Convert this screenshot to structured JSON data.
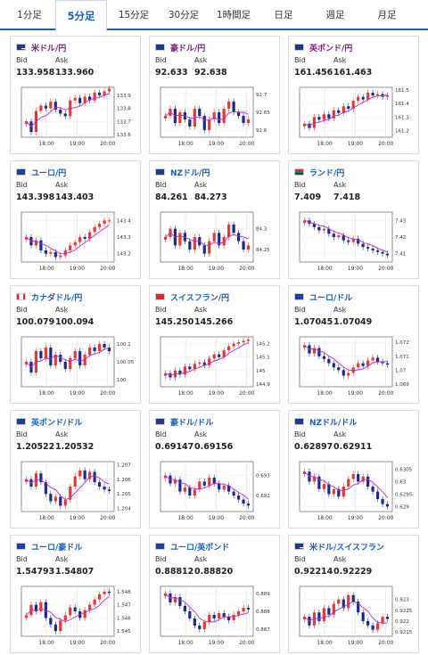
{
  "tabs": [
    {
      "label": "1分足"
    },
    {
      "label": "5分足"
    },
    {
      "label": "15分足"
    },
    {
      "label": "30分足"
    },
    {
      "label": "1時間足"
    },
    {
      "label": "日足"
    },
    {
      "label": "週足"
    },
    {
      "label": "月足"
    }
  ],
  "active_tab": 1,
  "bid_label": "Bid",
  "ask_label": "Ask",
  "colors": {
    "up": "#e53935",
    "down": "#1b2b8a",
    "ma": "#c026c8",
    "accent": "#1a5fb4",
    "pair_text": "#7a1f7a"
  },
  "cards": [
    {
      "name": "米ドル/円",
      "flag": "us-flag",
      "bid": "133.958",
      "ask": "133.960",
      "chart_data": {
        "type": "line",
        "x_ticks": [
          "18:00",
          "19:00",
          "20:00"
        ],
        "y_ticks": [
          "133.9",
          "133.8",
          "133.7",
          "133.6"
        ],
        "ylim": [
          133.58,
          133.96
        ],
        "series": [
          {
            "values": [
              133.7,
              133.62,
              133.78,
              133.82,
              133.8,
              133.85,
              133.79,
              133.76,
              133.74,
              133.86,
              133.88,
              133.84,
              133.89,
              133.86,
              133.92,
              133.9,
              133.93,
              133.95
            ]
          }
        ]
      }
    },
    {
      "name": "豪ドル/円",
      "flag": "au-flag",
      "bid": "92.633",
      "ask": "92.638",
      "chart_data": {
        "type": "line",
        "x_ticks": [
          "18:00",
          "19:00",
          "20:00"
        ],
        "y_ticks": [
          "92.7",
          "92.65",
          "92.6"
        ],
        "ylim": [
          92.58,
          92.72
        ],
        "series": [
          {
            "values": [
              92.64,
              92.66,
              92.62,
              92.65,
              92.63,
              92.61,
              92.66,
              92.64,
              92.6,
              92.63,
              92.65,
              92.62,
              92.66,
              92.68,
              92.65,
              92.64,
              92.62,
              92.63
            ]
          }
        ]
      }
    },
    {
      "name": "英ポンド/円",
      "flag": "gb-flag",
      "bid": "161.456",
      "ask": "161.463",
      "chart_data": {
        "type": "line",
        "x_ticks": [
          "18:00",
          "19:00",
          "20:00"
        ],
        "y_ticks": [
          "161.5",
          "161.4",
          "161.3",
          "161.2"
        ],
        "ylim": [
          161.15,
          161.52
        ],
        "series": [
          {
            "values": [
              161.25,
              161.22,
              161.3,
              161.28,
              161.32,
              161.29,
              161.35,
              161.33,
              161.38,
              161.36,
              161.42,
              161.45,
              161.43,
              161.48,
              161.46,
              161.47,
              161.45,
              161.46
            ]
          }
        ]
      }
    },
    {
      "name": "ユーロ/円",
      "flag": "eu-flag",
      "bid": "143.398",
      "ask": "143.403",
      "chart_data": {
        "type": "line",
        "x_ticks": [
          "18:00",
          "19:00",
          "20:00"
        ],
        "y_ticks": [
          "143.4",
          "143.3",
          "143.2"
        ],
        "ylim": [
          143.15,
          143.45
        ],
        "series": [
          {
            "values": [
              143.3,
              143.25,
              143.28,
              143.22,
              143.2,
              143.21,
              143.18,
              143.19,
              143.22,
              143.25,
              143.27,
              143.3,
              143.29,
              143.33,
              143.36,
              143.38,
              143.4,
              143.4
            ]
          }
        ]
      }
    },
    {
      "name": "NZドル/円",
      "flag": "nz-flag",
      "bid": "84.261",
      "ask": "84.273",
      "chart_data": {
        "type": "line",
        "x_ticks": [
          "18:00",
          "19:00",
          "20:00"
        ],
        "y_ticks": [
          "84.3",
          "84.25"
        ],
        "ylim": [
          84.22,
          84.34
        ],
        "series": [
          {
            "values": [
              84.28,
              84.3,
              84.26,
              84.29,
              84.27,
              84.25,
              84.28,
              84.26,
              84.24,
              84.27,
              84.29,
              84.26,
              84.28,
              84.31,
              84.29,
              84.27,
              84.25,
              84.26
            ]
          }
        ]
      }
    },
    {
      "name": "ランド/円",
      "flag": "za-flag",
      "bid": "7.409",
      "ask": "7.418",
      "chart_data": {
        "type": "line",
        "x_ticks": [
          "18:00",
          "19:00",
          "20:00"
        ],
        "y_ticks": [
          "7.43",
          "7.42",
          "7.41"
        ],
        "ylim": [
          7.405,
          7.435
        ],
        "series": [
          {
            "values": [
              7.43,
              7.428,
              7.426,
              7.424,
              7.425,
              7.422,
              7.42,
              7.421,
              7.418,
              7.417,
              7.419,
              7.416,
              7.414,
              7.413,
              7.412,
              7.411,
              7.41,
              7.409
            ]
          }
        ]
      }
    },
    {
      "name": "カナダドル/円",
      "flag": "ca-flag",
      "bid": "100.079",
      "ask": "100.094",
      "chart_data": {
        "type": "line",
        "x_ticks": [
          "18:00",
          "19:00",
          "20:00"
        ],
        "y_ticks": [
          "100.1",
          "100.05",
          "100"
        ],
        "ylim": [
          99.98,
          100.12
        ],
        "series": [
          {
            "values": [
              100.05,
              100.02,
              100.08,
              100.06,
              100.09,
              100.04,
              100.07,
              100.05,
              100.03,
              100.06,
              100.08,
              100.04,
              100.07,
              100.09,
              100.08,
              100.1,
              100.09,
              100.08
            ]
          }
        ]
      }
    },
    {
      "name": "スイスフラン/円",
      "flag": "ch-flag",
      "bid": "145.250",
      "ask": "145.266",
      "chart_data": {
        "type": "line",
        "x_ticks": [
          "18:00",
          "19:00",
          "20:00"
        ],
        "y_ticks": [
          "145.2",
          "145.1",
          "145",
          "144.9"
        ],
        "ylim": [
          144.88,
          145.25
        ],
        "series": [
          {
            "values": [
              144.98,
              144.95,
              145.0,
              144.97,
              145.03,
              145.01,
              145.05,
              145.06,
              145.04,
              145.09,
              145.12,
              145.1,
              145.15,
              145.18,
              145.2,
              145.21,
              145.22,
              145.23
            ]
          }
        ]
      }
    },
    {
      "name": "ユーロ/ドル",
      "flag": "eu-us-flag",
      "bid": "1.07045",
      "ask": "1.07049",
      "chart_data": {
        "type": "line",
        "x_ticks": [
          "18:00",
          "19:00",
          "20:00"
        ],
        "y_ticks": [
          "1.072",
          "1.071",
          "1.07",
          "1.069"
        ],
        "ylim": [
          1.0688,
          1.0724
        ],
        "series": [
          {
            "values": [
              1.0718,
              1.0712,
              1.0716,
              1.071,
              1.0708,
              1.0705,
              1.0702,
              1.07,
              1.0696,
              1.0698,
              1.0702,
              1.0705,
              1.0703,
              1.0707,
              1.0709,
              1.0706,
              1.0705,
              1.0704
            ]
          }
        ]
      }
    },
    {
      "name": "英ポンド/ドル",
      "flag": "gb-us-flag",
      "bid": "1.20522",
      "ask": "1.20532",
      "chart_data": {
        "type": "line",
        "x_ticks": [
          "18:00",
          "19:00",
          "20:00"
        ],
        "y_ticks": [
          "1.207",
          "1.206",
          "1.205",
          "1.204"
        ],
        "ylim": [
          1.2038,
          1.2072
        ],
        "series": [
          {
            "values": [
              1.206,
              1.2055,
              1.2064,
              1.2058,
              1.205,
              1.2045,
              1.2048,
              1.2042,
              1.2046,
              1.2055,
              1.2062,
              1.2066,
              1.206,
              1.2065,
              1.2058,
              1.2055,
              1.2053,
              1.2052
            ]
          }
        ]
      }
    },
    {
      "name": "豪ドル/ドル",
      "flag": "au-us-flag",
      "bid": "0.69147",
      "ask": "0.69156",
      "chart_data": {
        "type": "line",
        "x_ticks": [
          "18:00",
          "19:00",
          "20:00"
        ],
        "y_ticks": [
          "0.693",
          "0.692"
        ],
        "ylim": [
          0.6912,
          0.6937
        ],
        "series": [
          {
            "values": [
              0.693,
              0.6926,
              0.6928,
              0.6922,
              0.6924,
              0.692,
              0.6923,
              0.6927,
              0.6925,
              0.6929,
              0.6926,
              0.6923,
              0.6925,
              0.6922,
              0.692,
              0.6918,
              0.6916,
              0.6915
            ]
          }
        ]
      }
    },
    {
      "name": "NZドル/ドル",
      "flag": "nz-us-flag",
      "bid": "0.62897",
      "ask": "0.62911",
      "chart_data": {
        "type": "line",
        "x_ticks": [
          "18:00",
          "19:00",
          "20:00"
        ],
        "y_ticks": [
          "0.6305",
          "0.63",
          "0.6295",
          "0.629"
        ],
        "ylim": [
          0.6288,
          0.6308
        ],
        "series": [
          {
            "values": [
              0.6304,
              0.63,
              0.6302,
              0.6297,
              0.6299,
              0.6295,
              0.6297,
              0.6294,
              0.6298,
              0.6301,
              0.6303,
              0.63,
              0.6302,
              0.6298,
              0.6296,
              0.6293,
              0.6291,
              0.629
            ]
          }
        ]
      }
    },
    {
      "name": "ユーロ/豪ドル",
      "flag": "eu-au-flag",
      "bid": "1.54793",
      "ask": "1.54807",
      "chart_data": {
        "type": "line",
        "x_ticks": [
          "18:00",
          "19:00",
          "20:00"
        ],
        "y_ticks": [
          "1.548",
          "1.547",
          "1.546",
          "1.545"
        ],
        "ylim": [
          1.5446,
          1.5484
        ],
        "series": [
          {
            "values": [
              1.5462,
              1.547,
              1.5465,
              1.5472,
              1.546,
              1.5455,
              1.545,
              1.5458,
              1.5462,
              1.5468,
              1.5465,
              1.546,
              1.5466,
              1.547,
              1.5474,
              1.5478,
              1.548,
              1.5479
            ]
          }
        ]
      }
    },
    {
      "name": "ユーロ/英ポンド",
      "flag": "eu-gb-flag",
      "bid": "0.88812",
      "ask": "0.88820",
      "chart_data": {
        "type": "line",
        "x_ticks": [
          "18:00",
          "19:00",
          "20:00"
        ],
        "y_ticks": [
          "0.889",
          "0.888",
          "0.887"
        ],
        "ylim": [
          0.8866,
          0.8894
        ],
        "series": [
          {
            "values": [
              0.889,
              0.8885,
              0.8888,
              0.8883,
              0.888,
              0.8876,
              0.8872,
              0.887,
              0.8874,
              0.8878,
              0.8876,
              0.8879,
              0.8877,
              0.8875,
              0.8878,
              0.888,
              0.8882,
              0.8881
            ]
          }
        ]
      }
    },
    {
      "name": "米ドル/スイスフラン",
      "flag": "us-ch-flag",
      "bid": "0.92214",
      "ask": "0.92229",
      "chart_data": {
        "type": "line",
        "x_ticks": [
          "18:00",
          "19:00",
          "20:00"
        ],
        "y_ticks": [
          "0.923",
          "0.9225",
          "0.922",
          "0.9215"
        ],
        "ylim": [
          0.9213,
          0.9236
        ],
        "series": [
          {
            "values": [
              0.9222,
              0.9218,
              0.9224,
              0.922,
              0.9226,
              0.9223,
              0.9228,
              0.923,
              0.9226,
              0.9232,
              0.9229,
              0.9224,
              0.922,
              0.9218,
              0.9216,
              0.9219,
              0.9222,
              0.9221
            ]
          }
        ]
      }
    }
  ]
}
